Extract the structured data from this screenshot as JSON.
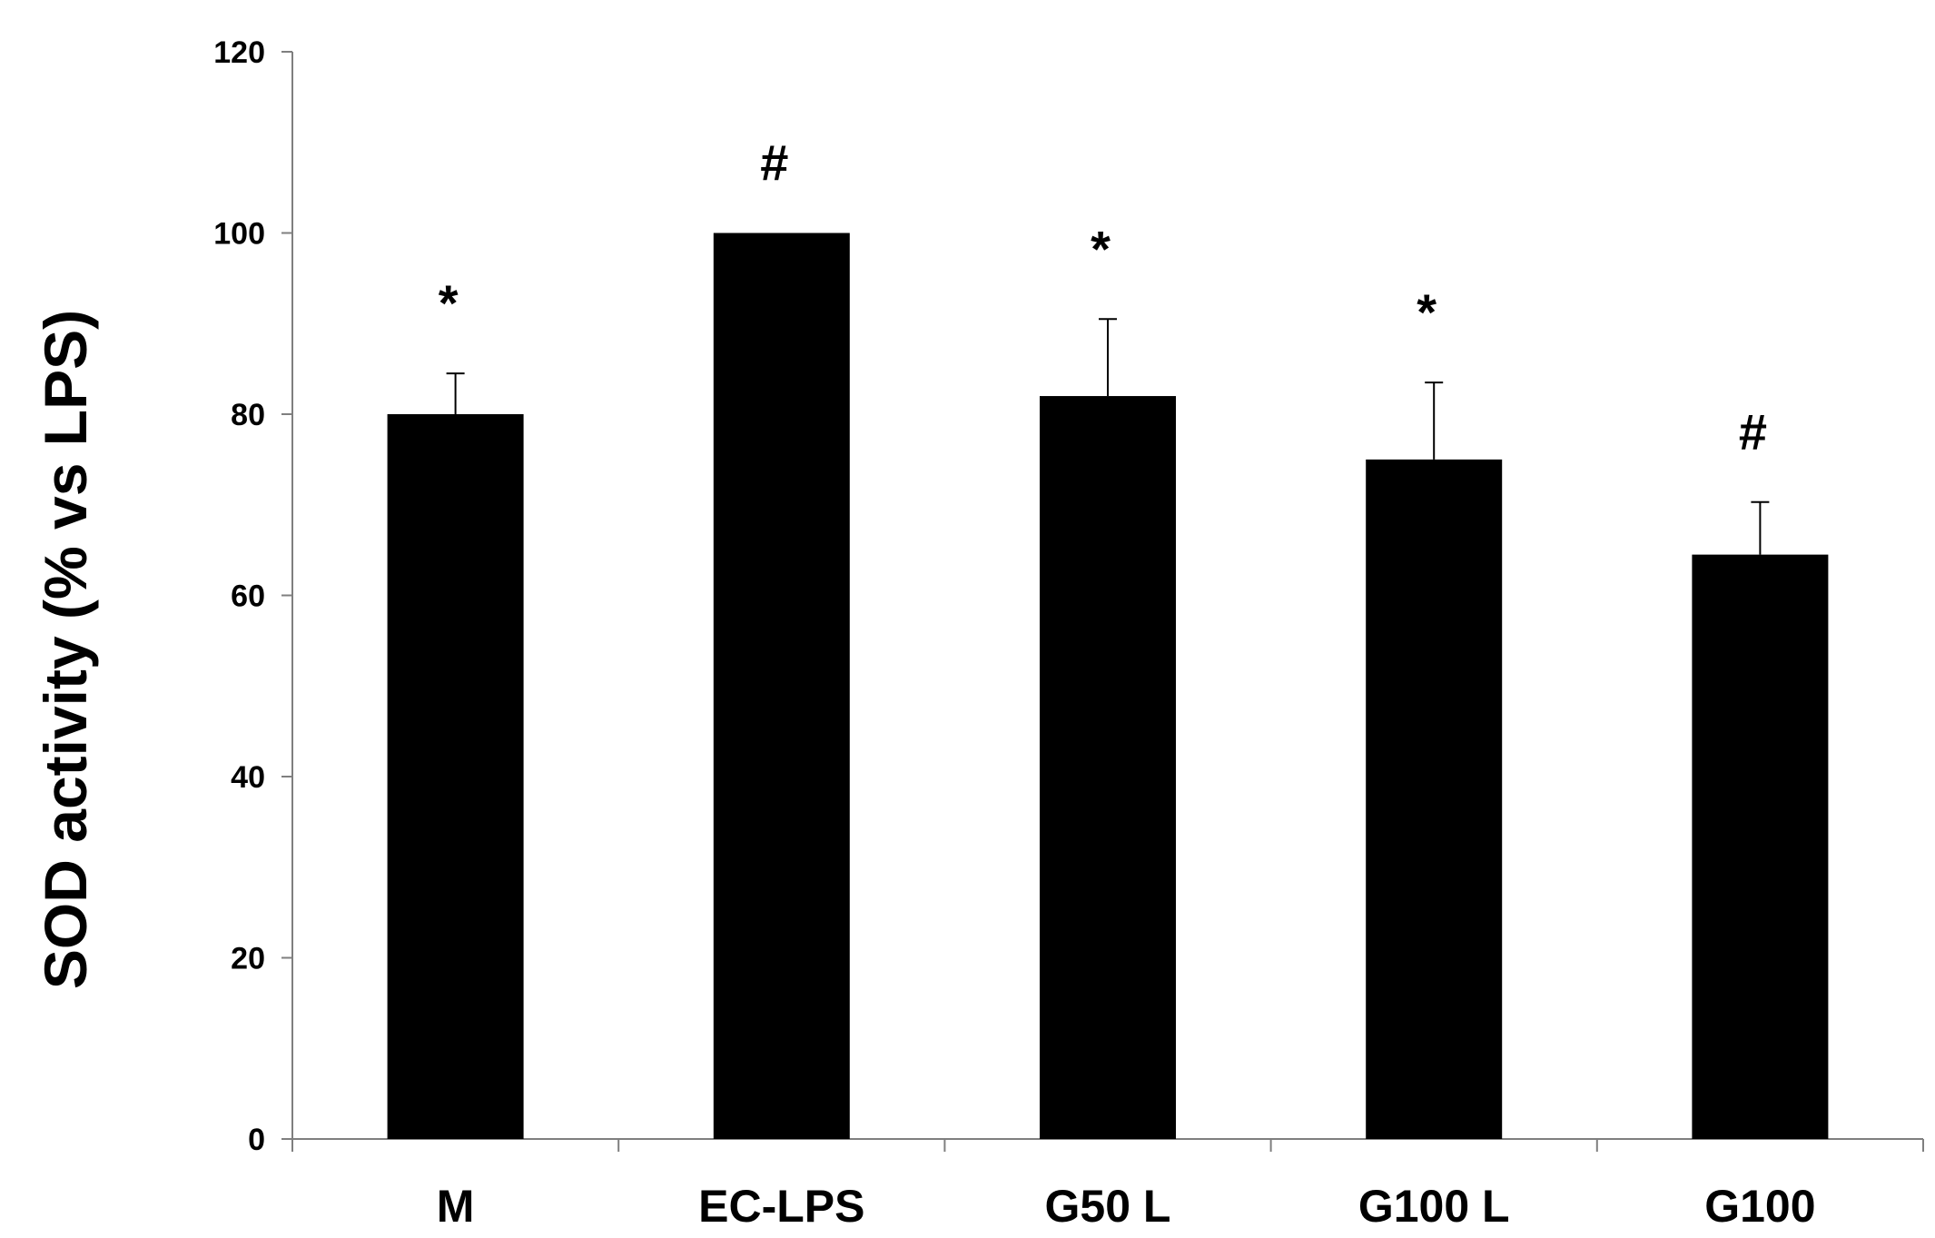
{
  "chart_data": {
    "type": "bar",
    "title": "",
    "xlabel": "",
    "ylabel": "SOD activity (% vs LPS)",
    "categories": [
      "M",
      "EC-LPS",
      "G50 L",
      "G100 L",
      "G100"
    ],
    "values": [
      80,
      100,
      82,
      75,
      64.5
    ],
    "errors": [
      4.5,
      0,
      8.5,
      8.5,
      5.8
    ],
    "significance": [
      "*",
      "#",
      "*",
      "*",
      "#"
    ],
    "ylim": [
      0,
      120
    ],
    "yticks": [
      0,
      20,
      40,
      60,
      80,
      100,
      120
    ],
    "grid": false,
    "bar_color": "#000000"
  }
}
